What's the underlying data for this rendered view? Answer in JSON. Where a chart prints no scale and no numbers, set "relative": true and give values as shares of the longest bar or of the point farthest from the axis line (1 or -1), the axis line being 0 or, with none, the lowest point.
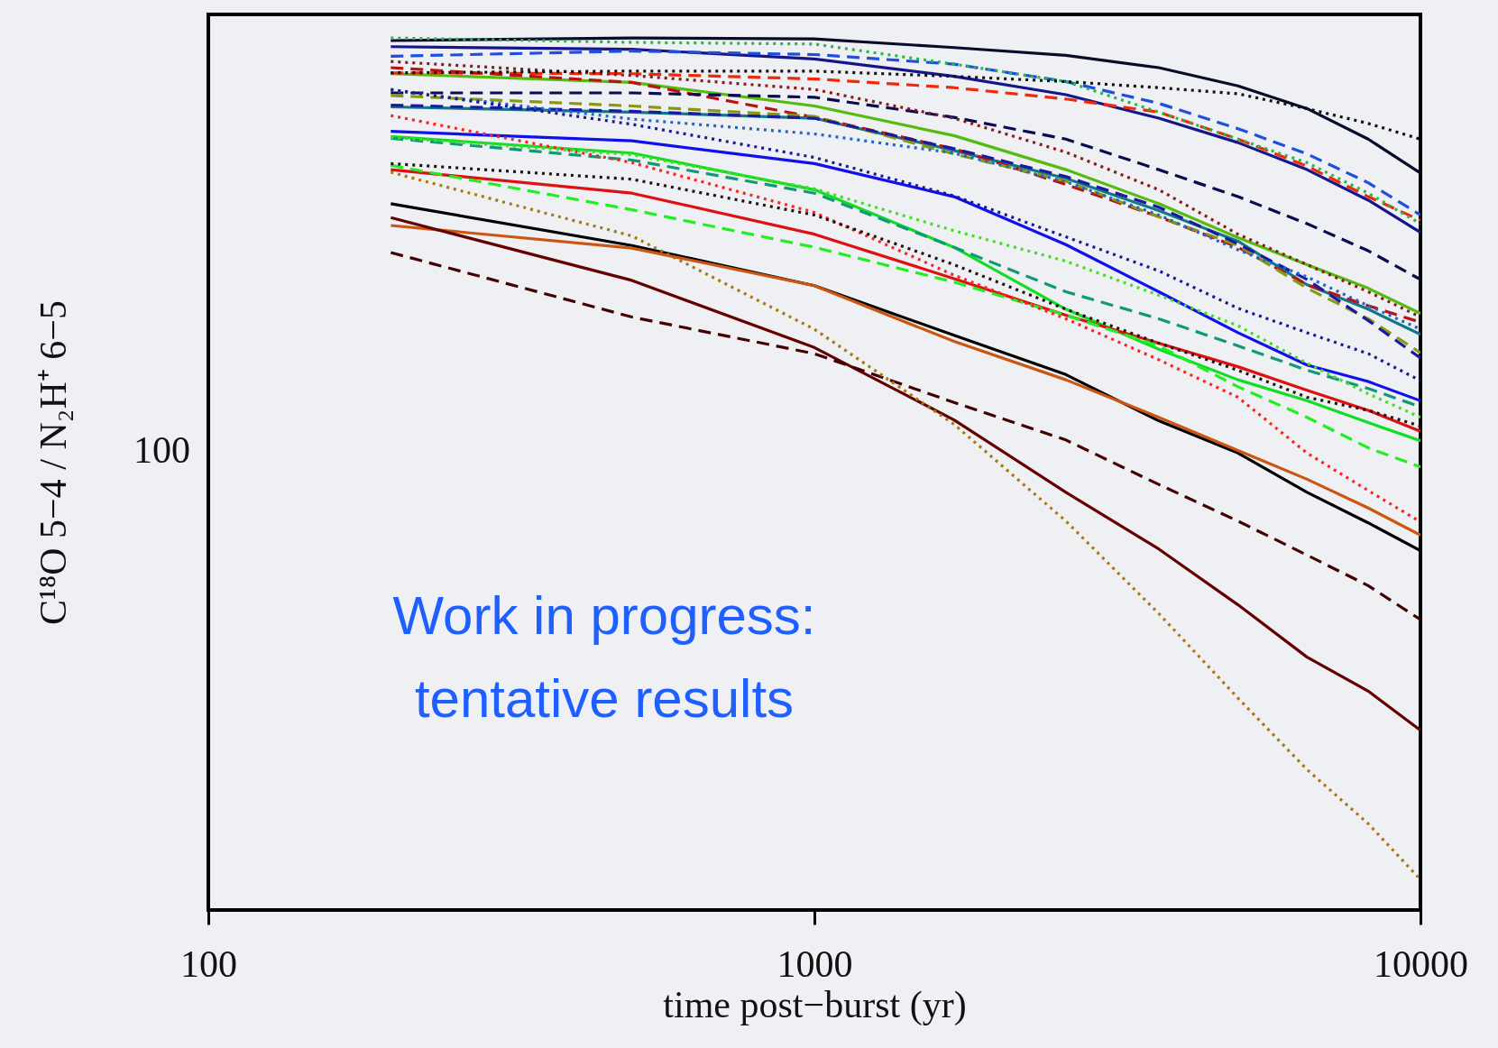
{
  "chart_data": {
    "type": "line",
    "xlabel": "time post−burst (yr)",
    "ylabel": "C¹⁸O 5−4 / N₂H⁺ 6−5",
    "log": "x",
    "relative": true,
    "annotations": [
      "Work in progress:\ntentative results",
      "100"
    ],
    "x": [
      200,
      500,
      1000,
      1700,
      2600,
      3700,
      5000,
      6500,
      8200,
      10000
    ],
    "xlim": [
      100,
      10000
    ],
    "xticks": [
      100,
      1000,
      10000
    ],
    "series": [
      {
        "color": "#0a0a2a",
        "line_style": "solid",
        "values": [
          0.997,
          1.0,
          0.999,
          0.989,
          0.98,
          0.966,
          0.945,
          0.919,
          0.884,
          0.845
        ]
      },
      {
        "color": "#22bb44",
        "line_style": "dotted",
        "values": [
          1.0,
          0.995,
          0.993,
          0.97,
          0.95,
          0.915,
          0.884,
          0.857,
          0.822,
          0.787
        ]
      },
      {
        "color": "#16168a",
        "line_style": "solid",
        "values": [
          0.99,
          0.987,
          0.976,
          0.956,
          0.935,
          0.908,
          0.88,
          0.849,
          0.814,
          0.777
        ]
      },
      {
        "color": "#1f4fdd",
        "line_style": "dashed",
        "values": [
          0.979,
          0.985,
          0.981,
          0.97,
          0.95,
          0.925,
          0.896,
          0.867,
          0.834,
          0.797
        ]
      },
      {
        "color": "#8b1a1a",
        "line_style": "dotted",
        "values": [
          0.973,
          0.957,
          0.941,
          0.908,
          0.869,
          0.826,
          0.775,
          0.74,
          0.709,
          0.68
        ]
      },
      {
        "color": "#ee2a0a",
        "line_style": "dashed",
        "values": [
          0.96,
          0.959,
          0.953,
          0.943,
          0.93,
          0.915,
          0.884,
          0.853,
          0.818,
          0.791
        ]
      },
      {
        "color": "#111111",
        "line_style": "dotted",
        "values": [
          0.96,
          0.962,
          0.962,
          0.956,
          0.95,
          0.943,
          0.936,
          0.919,
          0.902,
          0.884
        ]
      },
      {
        "color": "#bb1111",
        "line_style": "dashed",
        "values": [
          0.966,
          0.949,
          0.909,
          0.873,
          0.832,
          0.795,
          0.76,
          0.717,
          0.693,
          0.674
        ]
      },
      {
        "color": "#55bb11",
        "line_style": "solid",
        "values": [
          0.959,
          0.949,
          0.922,
          0.888,
          0.849,
          0.81,
          0.771,
          0.74,
          0.713,
          0.684
        ]
      },
      {
        "color": "#0a0a50",
        "line_style": "dashed",
        "values": [
          0.937,
          0.937,
          0.932,
          0.909,
          0.884,
          0.849,
          0.818,
          0.787,
          0.756,
          0.723
        ]
      },
      {
        "color": "#889911",
        "line_style": "dashed",
        "values": [
          0.934,
          0.922,
          0.91,
          0.867,
          0.836,
          0.795,
          0.762,
          0.713,
          0.678,
          0.639
        ]
      },
      {
        "color": "#117788",
        "line_style": "solid",
        "values": [
          0.921,
          0.915,
          0.908,
          0.871,
          0.839,
          0.802,
          0.767,
          0.717,
          0.689,
          0.66
        ]
      },
      {
        "color": "#1a1aa0",
        "line_style": "dashed",
        "values": [
          0.923,
          0.916,
          0.908,
          0.873,
          0.841,
          0.806,
          0.764,
          0.723,
          0.676,
          0.633
        ]
      },
      {
        "color": "#2266cc",
        "line_style": "dotted",
        "values": [
          0.94,
          0.907,
          0.89,
          0.868,
          0.835,
          0.797,
          0.757,
          0.726,
          0.693,
          0.666
        ]
      },
      {
        "color": "#1010ee",
        "line_style": "solid",
        "values": [
          0.893,
          0.882,
          0.856,
          0.818,
          0.763,
          0.709,
          0.662,
          0.625,
          0.606,
          0.584
        ]
      },
      {
        "color": "#1a1a99",
        "line_style": "dotted",
        "values": [
          0.941,
          0.901,
          0.863,
          0.819,
          0.772,
          0.733,
          0.69,
          0.662,
          0.638,
          0.607
        ]
      },
      {
        "color": "#ff2222",
        "line_style": "dotted",
        "values": [
          0.911,
          0.857,
          0.8,
          0.728,
          0.678,
          0.631,
          0.588,
          0.524,
          0.481,
          0.445
        ]
      },
      {
        "color": "#221111",
        "line_style": "dotted",
        "values": [
          0.856,
          0.838,
          0.797,
          0.74,
          0.689,
          0.65,
          0.619,
          0.588,
          0.573,
          0.555
        ]
      },
      {
        "color": "#44dd22",
        "line_style": "dotted",
        "values": [
          0.886,
          0.866,
          0.827,
          0.779,
          0.744,
          0.705,
          0.67,
          0.627,
          0.592,
          0.565
        ]
      },
      {
        "color": "#11dd22",
        "line_style": "solid",
        "values": [
          0.887,
          0.868,
          0.826,
          0.76,
          0.689,
          0.643,
          0.608,
          0.584,
          0.559,
          0.538
        ]
      },
      {
        "color": "#119977",
        "line_style": "dashed",
        "values": [
          0.885,
          0.86,
          0.822,
          0.76,
          0.709,
          0.678,
          0.647,
          0.619,
          0.598,
          0.577
        ]
      },
      {
        "color": "#dd1111",
        "line_style": "solid",
        "values": [
          0.849,
          0.822,
          0.775,
          0.724,
          0.682,
          0.65,
          0.623,
          0.596,
          0.573,
          0.549
        ]
      },
      {
        "color": "#22ee22",
        "line_style": "dashed",
        "values": [
          0.854,
          0.803,
          0.76,
          0.72,
          0.682,
          0.647,
          0.6,
          0.565,
          0.53,
          0.508
        ]
      },
      {
        "color": "#000000",
        "line_style": "solid",
        "values": [
          0.81,
          0.762,
          0.716,
          0.659,
          0.614,
          0.561,
          0.524,
          0.479,
          0.444,
          0.412
        ]
      },
      {
        "color": "#cc5511",
        "line_style": "solid",
        "values": [
          0.785,
          0.759,
          0.716,
          0.652,
          0.608,
          0.565,
          0.527,
          0.494,
          0.461,
          0.43
        ]
      },
      {
        "color": "#660000",
        "line_style": "solid",
        "values": [
          0.794,
          0.722,
          0.645,
          0.562,
          0.479,
          0.414,
          0.35,
          0.29,
          0.251,
          0.206
        ]
      },
      {
        "color": "#440000",
        "line_style": "dashed",
        "values": [
          0.754,
          0.68,
          0.638,
          0.582,
          0.539,
          0.488,
          0.446,
          0.407,
          0.372,
          0.333
        ]
      },
      {
        "color": "#aa7711",
        "line_style": "dotted",
        "values": [
          0.846,
          0.773,
          0.666,
          0.557,
          0.446,
          0.34,
          0.243,
          0.161,
          0.099,
          0.035
        ]
      }
    ]
  }
}
